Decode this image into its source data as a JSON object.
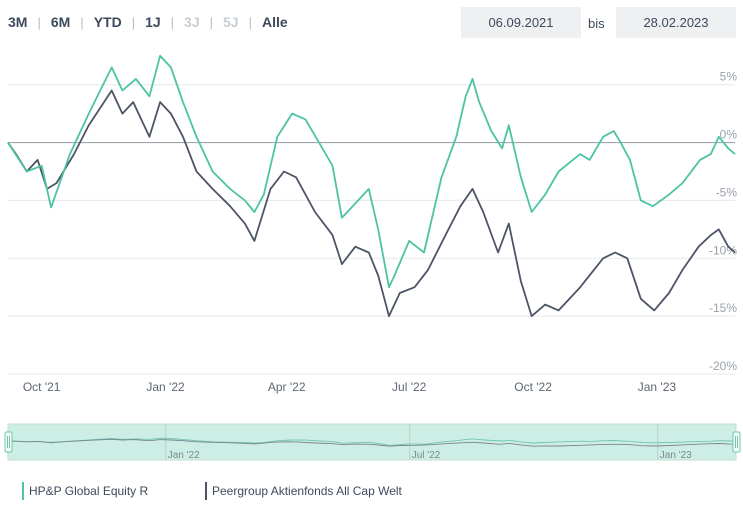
{
  "range_buttons": [
    {
      "label": "3M",
      "enabled": true
    },
    {
      "label": "6M",
      "enabled": true
    },
    {
      "label": "YTD",
      "enabled": true
    },
    {
      "label": "1J",
      "enabled": true
    },
    {
      "label": "3J",
      "enabled": false
    },
    {
      "label": "5J",
      "enabled": false
    },
    {
      "label": "Alle",
      "enabled": true
    }
  ],
  "date_range": {
    "from": "06.09.2021",
    "separator": "bis",
    "to": "28.02.2023"
  },
  "colors": {
    "fund": "#4cc3a2",
    "peer": "#4c5566",
    "navigator_fill": "#cdeee4",
    "grid": "#e6e8eb",
    "zero_line": "#a0a6ae"
  },
  "chart_data": {
    "type": "line",
    "title": "",
    "xlabel": "",
    "ylabel": "",
    "x_range": [
      "2021-09-06",
      "2023-02-28"
    ],
    "ylim": [
      -20,
      8
    ],
    "y_ticks": [
      5,
      0,
      -5,
      -10,
      -15,
      -20
    ],
    "y_tick_labels": [
      "5%",
      "0%",
      "-5%",
      "-10%",
      "-15%",
      "-20%"
    ],
    "x_ticks": [
      {
        "date": "2021-10-01",
        "label": "Oct '21"
      },
      {
        "date": "2022-01-01",
        "label": "Jan '22"
      },
      {
        "date": "2022-04-01",
        "label": "Apr '22"
      },
      {
        "date": "2022-07-01",
        "label": "Jul '22"
      },
      {
        "date": "2022-10-01",
        "label": "Oct '22"
      },
      {
        "date": "2023-01-01",
        "label": "Jan '23"
      }
    ],
    "navigator_ticks": [
      {
        "date": "2022-01-01",
        "label": "Jan '22"
      },
      {
        "date": "2022-07-01",
        "label": "Jul '22"
      },
      {
        "date": "2023-01-01",
        "label": "Jan '23"
      }
    ],
    "grid": true,
    "legend_position": "bottom-left",
    "series": [
      {
        "name": "HP&P Global Equity R",
        "color": "#4cc3a2",
        "points": [
          [
            "2021-09-06",
            0.0
          ],
          [
            "2021-09-20",
            -2.5
          ],
          [
            "2021-10-01",
            -2.0
          ],
          [
            "2021-10-08",
            -5.6
          ],
          [
            "2021-10-22",
            -1.0
          ],
          [
            "2021-11-05",
            2.5
          ],
          [
            "2021-11-22",
            6.5
          ],
          [
            "2021-11-30",
            4.5
          ],
          [
            "2021-12-10",
            5.5
          ],
          [
            "2021-12-20",
            4.0
          ],
          [
            "2021-12-28",
            7.5
          ],
          [
            "2022-01-05",
            6.5
          ],
          [
            "2022-01-14",
            3.5
          ],
          [
            "2022-01-24",
            0.5
          ],
          [
            "2022-02-05",
            -2.5
          ],
          [
            "2022-02-18",
            -4.0
          ],
          [
            "2022-03-01",
            -5.0
          ],
          [
            "2022-03-08",
            -6.0
          ],
          [
            "2022-03-15",
            -4.5
          ],
          [
            "2022-03-25",
            0.5
          ],
          [
            "2022-04-05",
            2.5
          ],
          [
            "2022-04-15",
            2.0
          ],
          [
            "2022-04-25",
            0.0
          ],
          [
            "2022-05-05",
            -2.0
          ],
          [
            "2022-05-12",
            -6.5
          ],
          [
            "2022-05-20",
            -5.5
          ],
          [
            "2022-06-01",
            -4.0
          ],
          [
            "2022-06-08",
            -7.5
          ],
          [
            "2022-06-16",
            -12.5
          ],
          [
            "2022-06-20",
            -11.5
          ],
          [
            "2022-07-01",
            -8.5
          ],
          [
            "2022-07-12",
            -9.5
          ],
          [
            "2022-07-25",
            -3.0
          ],
          [
            "2022-08-05",
            0.5
          ],
          [
            "2022-08-12",
            4.0
          ],
          [
            "2022-08-17",
            5.5
          ],
          [
            "2022-08-22",
            3.5
          ],
          [
            "2022-08-31",
            1.0
          ],
          [
            "2022-09-08",
            -0.5
          ],
          [
            "2022-09-13",
            1.5
          ],
          [
            "2022-09-22",
            -3.0
          ],
          [
            "2022-09-30",
            -6.0
          ],
          [
            "2022-10-10",
            -4.5
          ],
          [
            "2022-10-20",
            -2.5
          ],
          [
            "2022-11-05",
            -1.0
          ],
          [
            "2022-11-12",
            -1.5
          ],
          [
            "2022-11-22",
            0.5
          ],
          [
            "2022-11-30",
            1.0
          ],
          [
            "2022-12-05",
            0.0
          ],
          [
            "2022-12-12",
            -1.5
          ],
          [
            "2022-12-20",
            -5.0
          ],
          [
            "2022-12-29",
            -5.5
          ],
          [
            "2023-01-10",
            -4.5
          ],
          [
            "2023-01-20",
            -3.5
          ],
          [
            "2023-02-02",
            -1.5
          ],
          [
            "2023-02-10",
            -1.0
          ],
          [
            "2023-02-16",
            0.5
          ],
          [
            "2023-02-23",
            -0.5
          ],
          [
            "2023-02-28",
            -1.0
          ]
        ]
      },
      {
        "name": "Peergroup Aktienfonds All Cap Welt",
        "color": "#4c5566",
        "points": [
          [
            "2021-09-06",
            0.0
          ],
          [
            "2021-09-12",
            -1.0
          ],
          [
            "2021-09-20",
            -2.5
          ],
          [
            "2021-09-28",
            -1.5
          ],
          [
            "2021-10-05",
            -4.0
          ],
          [
            "2021-10-12",
            -3.5
          ],
          [
            "2021-10-25",
            -1.0
          ],
          [
            "2021-11-05",
            1.5
          ],
          [
            "2021-11-22",
            4.5
          ],
          [
            "2021-11-30",
            2.5
          ],
          [
            "2021-12-08",
            3.5
          ],
          [
            "2021-12-20",
            0.5
          ],
          [
            "2021-12-28",
            3.5
          ],
          [
            "2022-01-05",
            2.5
          ],
          [
            "2022-01-14",
            0.5
          ],
          [
            "2022-01-24",
            -2.5
          ],
          [
            "2022-02-05",
            -4.0
          ],
          [
            "2022-02-18",
            -5.5
          ],
          [
            "2022-03-01",
            -7.0
          ],
          [
            "2022-03-08",
            -8.5
          ],
          [
            "2022-03-20",
            -4.0
          ],
          [
            "2022-03-30",
            -2.5
          ],
          [
            "2022-04-08",
            -3.0
          ],
          [
            "2022-04-22",
            -6.0
          ],
          [
            "2022-05-05",
            -8.0
          ],
          [
            "2022-05-12",
            -10.5
          ],
          [
            "2022-05-22",
            -9.0
          ],
          [
            "2022-06-01",
            -9.5
          ],
          [
            "2022-06-08",
            -11.5
          ],
          [
            "2022-06-16",
            -15.0
          ],
          [
            "2022-06-24",
            -13.0
          ],
          [
            "2022-07-05",
            -12.5
          ],
          [
            "2022-07-15",
            -11.0
          ],
          [
            "2022-07-28",
            -8.0
          ],
          [
            "2022-08-08",
            -5.5
          ],
          [
            "2022-08-17",
            -4.0
          ],
          [
            "2022-08-25",
            -6.0
          ],
          [
            "2022-09-05",
            -9.5
          ],
          [
            "2022-09-13",
            -7.0
          ],
          [
            "2022-09-22",
            -12.0
          ],
          [
            "2022-09-30",
            -15.0
          ],
          [
            "2022-10-10",
            -14.0
          ],
          [
            "2022-10-20",
            -14.5
          ],
          [
            "2022-11-05",
            -12.5
          ],
          [
            "2022-11-22",
            -10.0
          ],
          [
            "2022-12-01",
            -9.5
          ],
          [
            "2022-12-10",
            -10.0
          ],
          [
            "2022-12-20",
            -13.5
          ],
          [
            "2022-12-30",
            -14.5
          ],
          [
            "2023-01-10",
            -13.0
          ],
          [
            "2023-01-20",
            -11.0
          ],
          [
            "2023-02-01",
            -9.0
          ],
          [
            "2023-02-10",
            -8.0
          ],
          [
            "2023-02-16",
            -7.5
          ],
          [
            "2023-02-23",
            -9.0
          ],
          [
            "2023-02-28",
            -9.5
          ]
        ]
      }
    ]
  }
}
